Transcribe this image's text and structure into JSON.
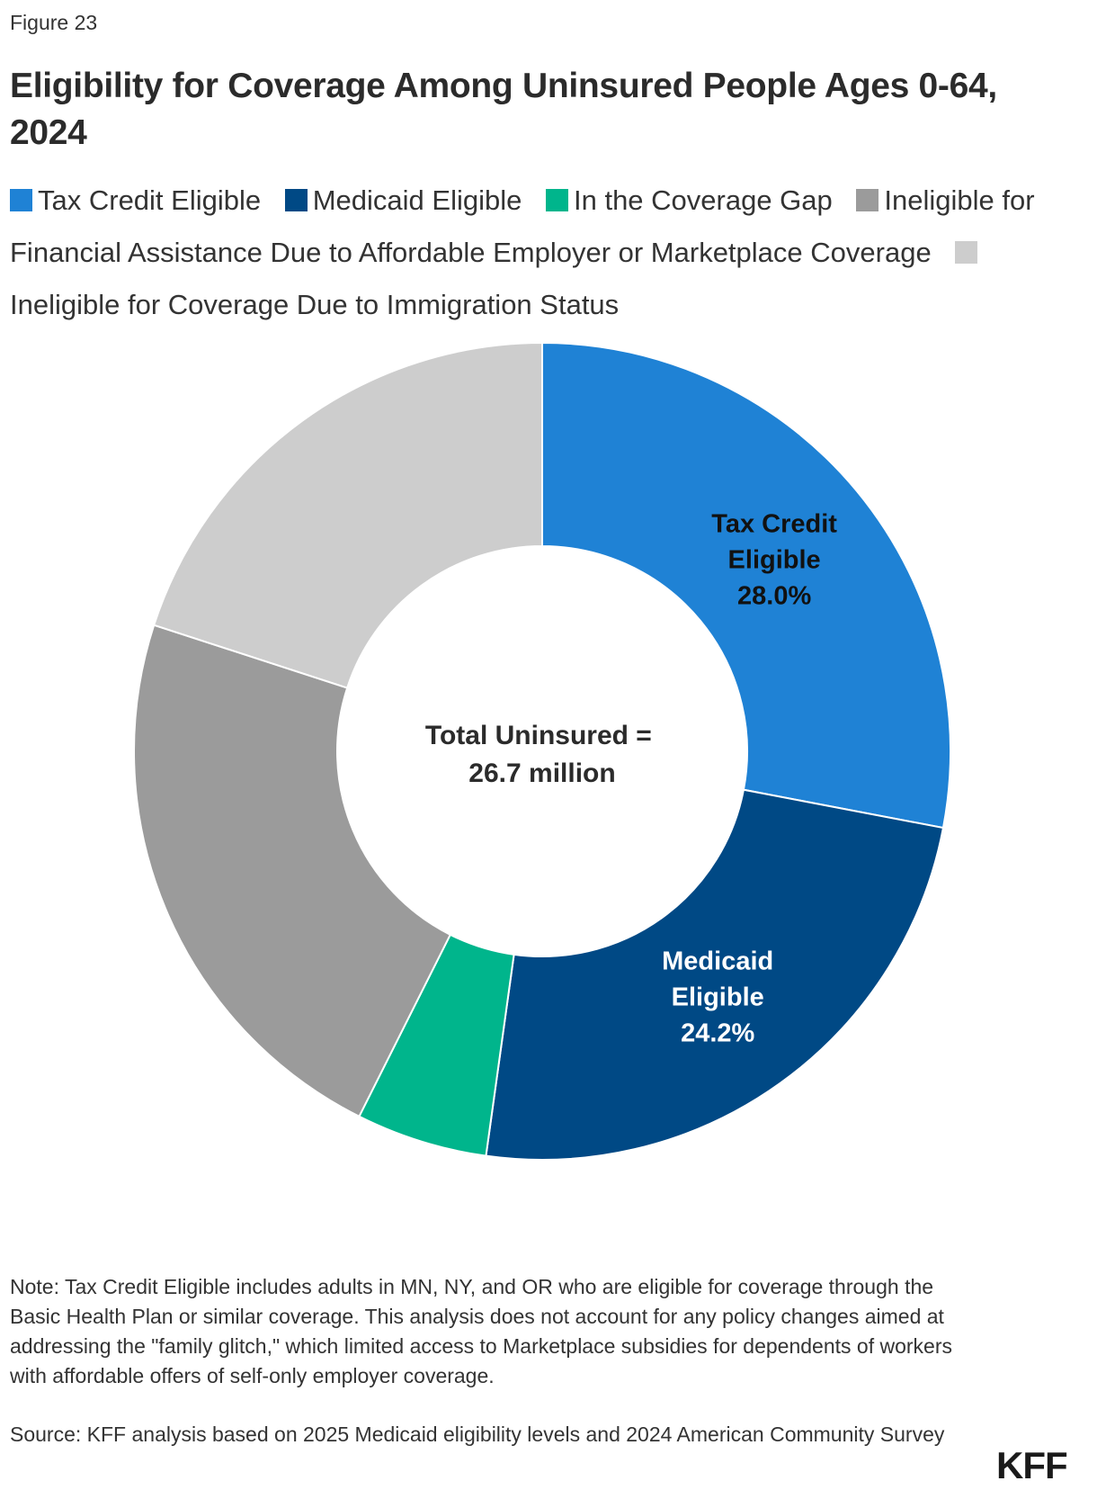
{
  "figure_label": "Figure 23",
  "title": "Eligibility for Coverage Among Uninsured People Ages 0-64, 2024",
  "legend": [
    {
      "label": "Tax Credit Eligible",
      "color": "#1f82d5"
    },
    {
      "label": "Medicaid Eligible",
      "color": "#004985"
    },
    {
      "label": "In the Coverage Gap",
      "color": "#00b58c"
    },
    {
      "label": "Ineligible for Financial Assistance Due to Affordable Employer or Marketplace Coverage",
      "color": "#9b9b9b"
    },
    {
      "label": "Ineligible for Coverage Due to Immigration Status",
      "color": "#cdcdcd"
    }
  ],
  "chart_data": {
    "type": "pie",
    "donut": true,
    "start_angle_deg": 0,
    "direction": "clockwise",
    "slices": [
      {
        "name": "Tax Credit Eligible",
        "value": 28.0,
        "color": "#1f82d5",
        "label_lines": [
          "Tax Credit",
          "Eligible",
          "28.0%"
        ],
        "label_color": "#111111"
      },
      {
        "name": "Medicaid Eligible",
        "value": 24.2,
        "color": "#004985",
        "label_lines": [
          "Medicaid",
          "Eligible",
          "24.2%"
        ],
        "label_color": "#ffffff"
      },
      {
        "name": "In the Coverage Gap",
        "value": 5.2,
        "color": "#00b58c",
        "label_lines": [],
        "label_color": "#ffffff"
      },
      {
        "name": "Ineligible for Financial Assistance Due to Affordable Employer or Marketplace Coverage",
        "value": 22.6,
        "color": "#9b9b9b",
        "label_lines": [],
        "label_color": "#ffffff"
      },
      {
        "name": "Ineligible for Coverage Due to Immigration Status",
        "value": 20.0,
        "color": "#cdcdcd",
        "label_lines": [],
        "label_color": "#111111"
      }
    ],
    "center_text": [
      "Total Uninsured =",
      "26.7 million"
    ],
    "unit": "%"
  },
  "note": "Note: Tax Credit Eligible includes adults in MN, NY, and OR who are eligible for coverage through the Basic Health Plan or similar coverage. This analysis does not account for any policy changes aimed at addressing the \"family glitch,\" which limited access to Marketplace subsidies for dependents of workers with affordable offers of self-only employer coverage.",
  "source": "Source: KFF analysis based on 2025 Medicaid eligibility levels and 2024 American Community Survey",
  "logo": "KFF"
}
